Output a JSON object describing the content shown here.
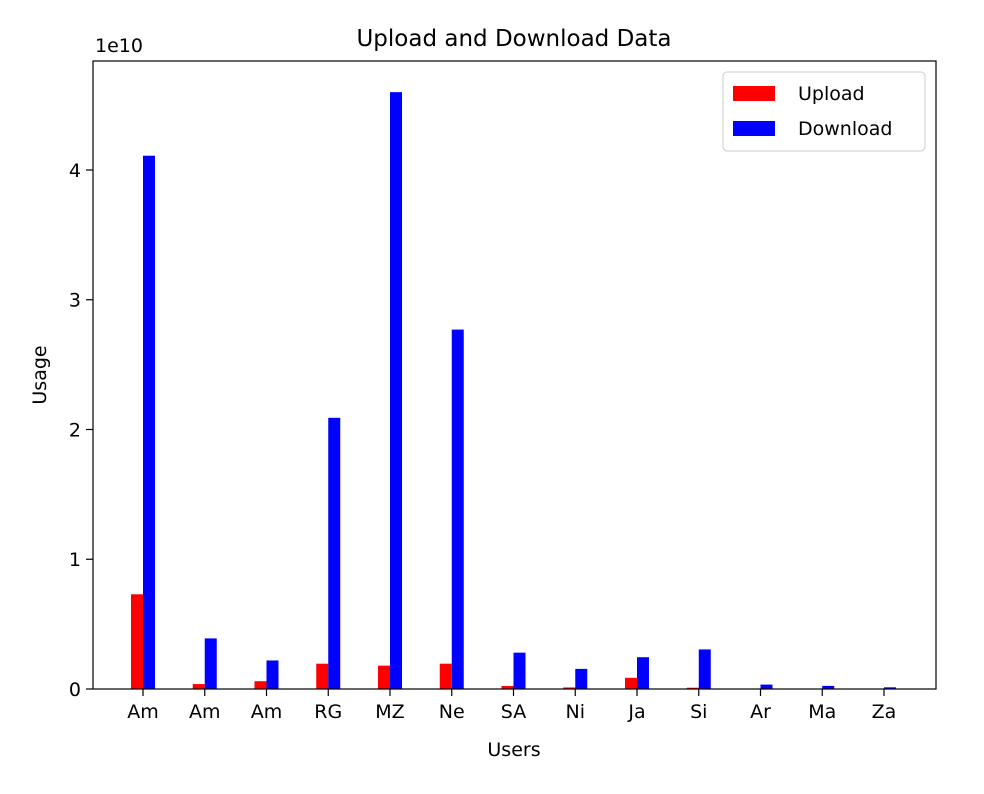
{
  "chart_data": {
    "type": "bar",
    "title": "Upload and Download Data",
    "xlabel": "Users",
    "ylabel": "Usage",
    "y_offset_text": "1e10",
    "y_scale": 10000000000,
    "ylim": [
      0,
      48400000000
    ],
    "y_ticks": [
      0,
      10000000000,
      20000000000,
      30000000000,
      40000000000
    ],
    "y_tick_labels": [
      "0",
      "1",
      "2",
      "3",
      "4"
    ],
    "categories": [
      "Am",
      "Am",
      "Am",
      "RG",
      "MZ",
      "Ne",
      "SA",
      "Ni",
      "Ja",
      "Si",
      "Ar",
      "Ma",
      "Za"
    ],
    "series": [
      {
        "name": "Upload",
        "color": "#ff0000",
        "values": [
          7300000000,
          380000000,
          600000000,
          1950000000,
          1800000000,
          1950000000,
          230000000,
          120000000,
          860000000,
          100000000,
          0,
          0,
          0
        ]
      },
      {
        "name": "Download",
        "color": "#0000ff",
        "values": [
          41100000000,
          3900000000,
          2200000000,
          20900000000,
          46000000000,
          27700000000,
          2800000000,
          1550000000,
          2450000000,
          3050000000,
          340000000,
          240000000,
          130000000
        ]
      }
    ],
    "legend_position": "upper-right",
    "grid": false
  }
}
